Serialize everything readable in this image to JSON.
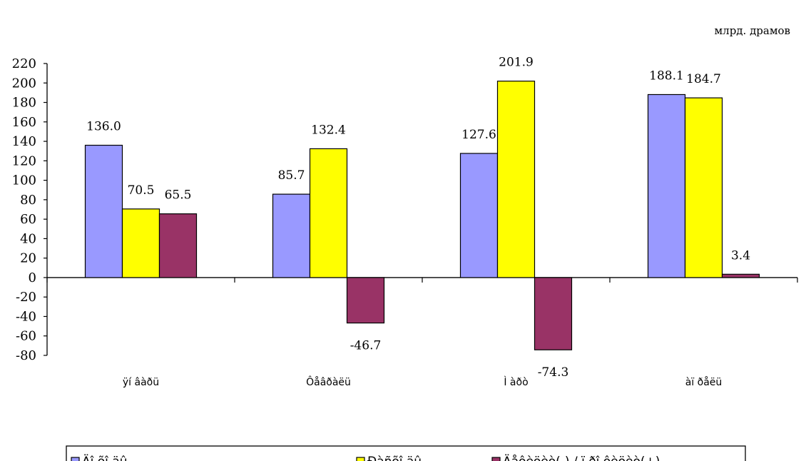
{
  "chart_data": {
    "type": "bar",
    "unit_label": "млрд.  драмов",
    "categories": [
      "ÿí âàðü",
      "Ôåâðàëü",
      "Ì àðò",
      "àï ðåëü"
    ],
    "series": [
      {
        "name": "Äî õî äû",
        "color": "#9999ff",
        "values": [
          136.0,
          85.7,
          127.6,
          188.1
        ],
        "labels": [
          "136.0",
          "85.7",
          "127.6",
          "188.1"
        ]
      },
      {
        "name": "Ðàñõî äû",
        "color": "#ffff00",
        "values": [
          70.5,
          132.4,
          201.9,
          184.7
        ],
        "labels": [
          "70.5",
          "132.4",
          "201.9",
          "184.7"
        ]
      },
      {
        "name": "Äåôèöèò(-) / ï ðî ôèöèò(+)",
        "color": "#993366",
        "values": [
          65.5,
          -46.7,
          -74.3,
          3.4
        ],
        "labels": [
          "65.5",
          "-46.7",
          "-74.3",
          "3.4"
        ]
      }
    ],
    "yticks": [
      "220",
      "200",
      "180",
      "160",
      "140",
      "120",
      "100",
      "80",
      "60",
      "40",
      "20",
      "0",
      "-20",
      "-40",
      "-60",
      "-80"
    ],
    "ylim": [
      -80,
      220
    ],
    "grid": false,
    "legend_position": "bottom"
  }
}
